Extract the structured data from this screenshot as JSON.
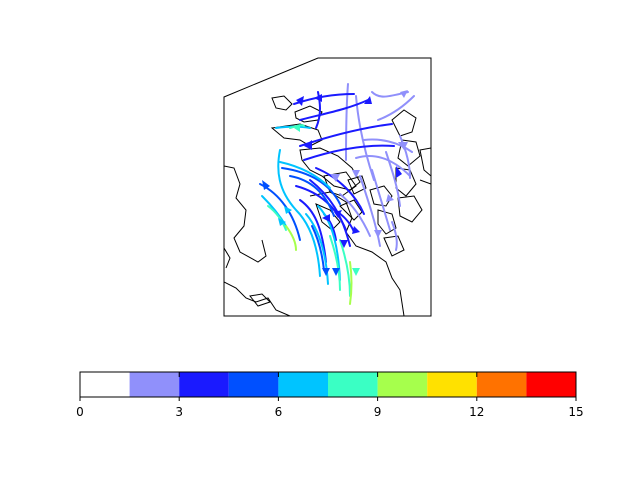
{
  "colorbar": {
    "ticks": [
      "0",
      "3",
      "6",
      "9",
      "12",
      "15"
    ],
    "tick_values": [
      0,
      3,
      6,
      9,
      12,
      15
    ],
    "range": [
      0,
      15
    ],
    "bins": [
      {
        "from": 0,
        "to": 1.5,
        "color": "#ffffff"
      },
      {
        "from": 1.5,
        "to": 3,
        "color": "#9090fb"
      },
      {
        "from": 3,
        "to": 4.5,
        "color": "#1a1aff"
      },
      {
        "from": 4.5,
        "to": 6,
        "color": "#0050ff"
      },
      {
        "from": 6,
        "to": 7.5,
        "color": "#00c4ff"
      },
      {
        "from": 7.5,
        "to": 9,
        "color": "#3affc4"
      },
      {
        "from": 9,
        "to": 10.5,
        "color": "#a6ff4c"
      },
      {
        "from": 10.5,
        "to": 12,
        "color": "#ffe100"
      },
      {
        "from": 12,
        "to": 13.5,
        "color": "#ff7200"
      },
      {
        "from": 13.5,
        "to": 15,
        "color": "#ff0000"
      }
    ]
  },
  "map": {
    "content": "streamlines",
    "speed_field_max_shown": 10
  }
}
